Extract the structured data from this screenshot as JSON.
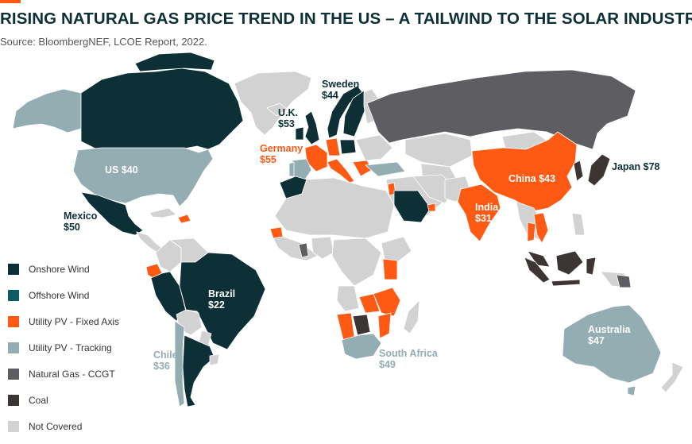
{
  "header": {
    "title": "RISING NATURAL GAS PRICE TREND IN THE US – A TAILWIND TO THE SOLAR INDUSTRY",
    "source": "Source: BloombergNEF, LCOE Report, 2022."
  },
  "colors": {
    "accent": "#ff5a14",
    "title": "#0d2f36",
    "onshore_wind": "#0d2f36",
    "offshore_wind": "#0f5b63",
    "utility_pv_fixed": "#ff5a14",
    "utility_pv_tracking": "#93adb2",
    "natural_gas_ccgt": "#5e5e62",
    "coal": "#3c3533",
    "not_covered": "#d2d2d2"
  },
  "legend": [
    {
      "key": "onshore_wind",
      "label": "Onshore Wind"
    },
    {
      "key": "offshore_wind",
      "label": "Offshore Wind"
    },
    {
      "key": "utility_pv_fixed",
      "label": "Utility PV - Fixed Axis"
    },
    {
      "key": "utility_pv_tracking",
      "label": "Utility PV - Tracking"
    },
    {
      "key": "natural_gas_ccgt",
      "label": "Natural Gas - CCGT"
    },
    {
      "key": "coal",
      "label": "Coal"
    },
    {
      "key": "not_covered",
      "label": "Not Covered"
    }
  ],
  "labels": {
    "us": {
      "name": "US",
      "value": "$40"
    },
    "mexico": {
      "name": "Mexico",
      "value": "$50"
    },
    "brazil": {
      "name": "Brazil",
      "value": "$22"
    },
    "chile": {
      "name": "Chile",
      "value": "$36"
    },
    "uk": {
      "name": "U.K.",
      "value": "$53"
    },
    "sweden": {
      "name": "Sweden",
      "value": "$44"
    },
    "germany": {
      "name": "Germany",
      "value": "$55"
    },
    "china": {
      "name": "China",
      "value": "$43"
    },
    "india": {
      "name": "India",
      "value": "$31"
    },
    "japan": {
      "name": "Japan",
      "value": "$78"
    },
    "south_africa": {
      "name": "South Africa",
      "value": "$49"
    },
    "australia": {
      "name": "Australia",
      "value": "$47"
    }
  }
}
